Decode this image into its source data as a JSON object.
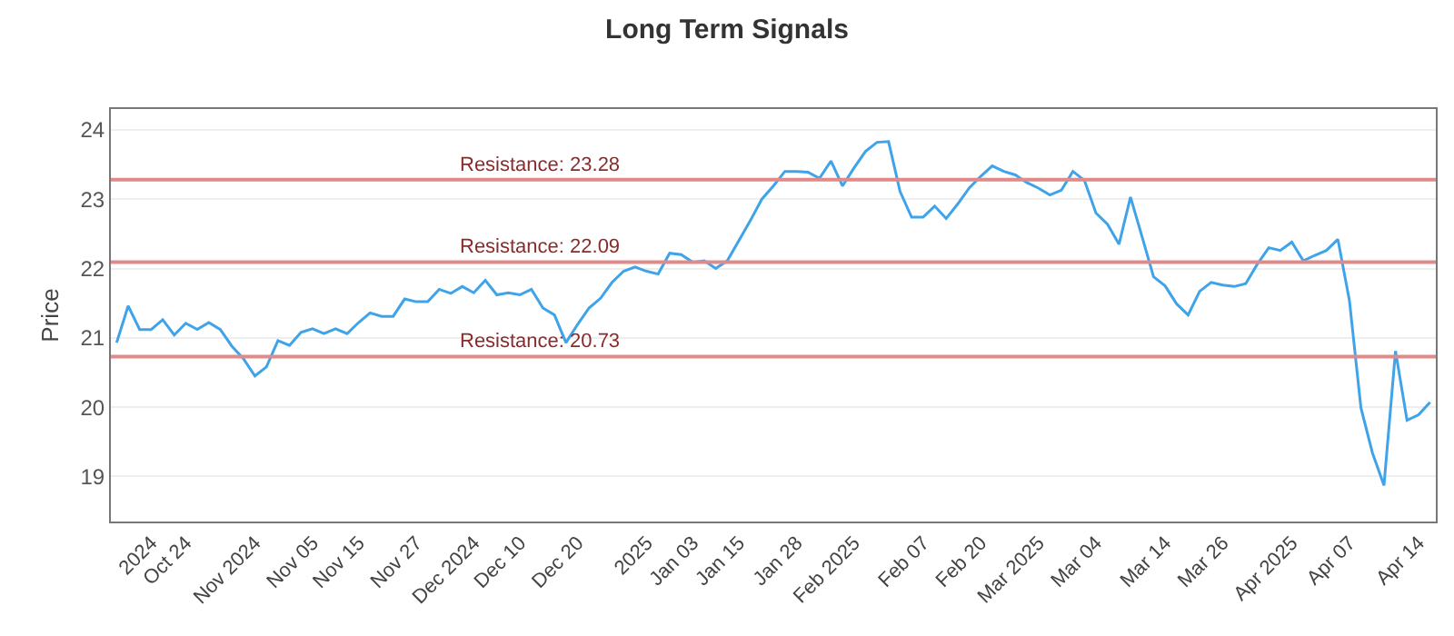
{
  "chart_data": {
    "type": "line",
    "title": "Long Term Signals",
    "ylabel": "Price",
    "categories": [
      null,
      null,
      null,
      "2024",
      null,
      null,
      "Oct 24",
      null,
      null,
      null,
      null,
      null,
      "Nov 2024",
      null,
      null,
      null,
      null,
      "Nov 05",
      null,
      null,
      null,
      "Nov 15",
      null,
      null,
      null,
      null,
      "Nov 27",
      null,
      null,
      null,
      null,
      "Dec 2024",
      null,
      null,
      null,
      "Dec 10",
      null,
      null,
      null,
      null,
      "Dec 20",
      null,
      null,
      null,
      null,
      null,
      "2025",
      null,
      null,
      null,
      "Jan 03",
      null,
      null,
      null,
      "Jan 15",
      null,
      null,
      null,
      null,
      "Jan 28",
      null,
      null,
      null,
      null,
      "Feb 2025",
      null,
      null,
      null,
      null,
      null,
      "Feb 07",
      null,
      null,
      null,
      null,
      "Feb 20",
      null,
      null,
      null,
      null,
      "Mar 2025",
      null,
      null,
      null,
      null,
      "Mar 04",
      null,
      null,
      null,
      null,
      null,
      "Mar 14",
      null,
      null,
      null,
      null,
      "Mar 26",
      null,
      null,
      null,
      null,
      null,
      "Apr 2025",
      null,
      null,
      null,
      null,
      "Apr 07",
      null,
      null,
      null,
      null,
      null,
      "Apr 14",
      null
    ],
    "series": [
      {
        "color": "#3fa3ea",
        "values": [
          20.93,
          21.46,
          21.12,
          21.12,
          21.26,
          21.04,
          21.21,
          21.12,
          21.22,
          21.12,
          20.88,
          20.7,
          20.45,
          20.58,
          20.96,
          20.89,
          21.08,
          21.13,
          21.06,
          21.13,
          21.06,
          21.22,
          21.36,
          21.31,
          21.31,
          21.56,
          21.52,
          21.52,
          21.7,
          21.64,
          21.74,
          21.65,
          21.83,
          21.62,
          21.65,
          21.62,
          21.7,
          21.43,
          21.33,
          20.93,
          21.19,
          21.43,
          21.57,
          21.8,
          21.96,
          22.02,
          21.96,
          21.92,
          22.22,
          22.2,
          22.09,
          22.11,
          22.0,
          22.11,
          22.4,
          22.69,
          23.0,
          23.19,
          23.4,
          23.4,
          23.39,
          23.3,
          23.55,
          23.19,
          23.45,
          23.69,
          23.82,
          23.83,
          23.11,
          22.74,
          22.74,
          22.9,
          22.72,
          22.93,
          23.16,
          23.33,
          23.48,
          23.4,
          23.35,
          23.24,
          23.16,
          23.06,
          23.13,
          23.4,
          23.27,
          22.8,
          22.64,
          22.35,
          23.03,
          22.46,
          21.88,
          21.75,
          21.49,
          21.33,
          21.67,
          21.8,
          21.76,
          21.74,
          21.78,
          22.06,
          22.3,
          22.26,
          22.38,
          22.11,
          22.19,
          22.26,
          22.42,
          21.54,
          19.99,
          19.34,
          18.87,
          20.81,
          19.81,
          19.89,
          20.07
        ]
      }
    ],
    "ylim": [
      18.35,
      24.3
    ],
    "yticks": [
      19,
      20,
      21,
      22,
      23,
      24
    ],
    "ref_lines": [
      {
        "axis": "y",
        "value": 23.28,
        "label": "Resistance: 23.28",
        "color": "#e08a8a"
      },
      {
        "axis": "y",
        "value": 22.09,
        "label": "Resistance: 22.09",
        "color": "#e08a8a"
      },
      {
        "axis": "y",
        "value": 20.73,
        "label": "Resistance: 20.73",
        "color": "#e08a8a"
      }
    ],
    "grid": "y",
    "legend": false,
    "marker": "none",
    "line_style": "solid"
  }
}
